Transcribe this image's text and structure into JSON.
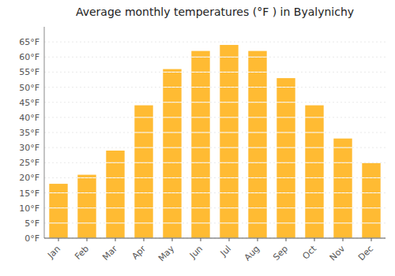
{
  "chart_data": {
    "type": "bar",
    "title": "Average monthly temperatures (°F ) in Byalynichy",
    "categories": [
      "Jan",
      "Feb",
      "Mar",
      "Apr",
      "May",
      "Jun",
      "Jul",
      "Aug",
      "Sep",
      "Oct",
      "Nov",
      "Dec"
    ],
    "values": [
      18,
      21,
      29,
      44,
      56,
      62,
      64,
      62,
      53,
      44,
      33,
      25
    ],
    "color": "#FFBB33",
    "ylim": [
      0,
      70
    ],
    "yticks": [
      {
        "value": 0,
        "label": "0°F"
      },
      {
        "value": 5,
        "label": "5°F"
      },
      {
        "value": 10,
        "label": "10°F"
      },
      {
        "value": 15,
        "label": "15°F"
      },
      {
        "value": 20,
        "label": "20°F"
      },
      {
        "value": 25,
        "label": "25°F"
      },
      {
        "value": 30,
        "label": "30°F"
      },
      {
        "value": 35,
        "label": "35°F"
      },
      {
        "value": 40,
        "label": "40°F"
      },
      {
        "value": 45,
        "label": "45°F"
      },
      {
        "value": 50,
        "label": "50°F"
      },
      {
        "value": 55,
        "label": "55°F"
      },
      {
        "value": 60,
        "label": "60°F"
      },
      {
        "value": 65,
        "label": "65°F"
      }
    ],
    "grid": true
  }
}
